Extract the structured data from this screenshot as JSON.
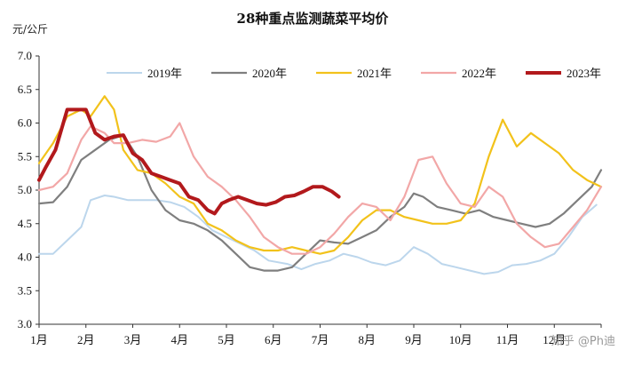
{
  "chart_data": {
    "type": "line",
    "title": "28种重点监测蔬菜平均价",
    "ylabel": "元/公斤",
    "xlabel": "",
    "ylim": [
      3.0,
      7.0
    ],
    "yticks": [
      "3.0",
      "3.5",
      "4.0",
      "4.5",
      "5.0",
      "5.5",
      "6.0",
      "6.5",
      "7.0"
    ],
    "x_months": [
      1,
      2,
      3,
      4,
      5,
      6,
      7,
      8,
      9,
      10,
      11,
      12
    ],
    "categories": [
      "1月",
      "2月",
      "3月",
      "4月",
      "5月",
      "6月",
      "7月",
      "8月",
      "9月",
      "10月",
      "11月",
      "12月"
    ],
    "grid": false,
    "legend_position": "top",
    "series": [
      {
        "name": "2019年",
        "color": "#bcd6ec",
        "width": 2,
        "x": [
          1.0,
          1.3,
          1.6,
          1.9,
          2.1,
          2.4,
          2.6,
          2.9,
          3.2,
          3.5,
          3.8,
          4.1,
          4.4,
          4.7,
          5.0,
          5.3,
          5.6,
          5.9,
          6.3,
          6.6,
          6.9,
          7.2,
          7.5,
          7.8,
          8.1,
          8.4,
          8.7,
          9.0,
          9.3,
          9.6,
          9.9,
          10.2,
          10.5,
          10.8,
          11.1,
          11.4,
          11.7,
          12.0,
          12.3,
          12.6,
          12.9
        ],
        "values": [
          4.05,
          4.05,
          4.25,
          4.45,
          4.85,
          4.92,
          4.9,
          4.85,
          4.85,
          4.85,
          4.82,
          4.75,
          4.6,
          4.4,
          4.3,
          4.2,
          4.1,
          3.95,
          3.9,
          3.82,
          3.9,
          3.95,
          4.05,
          4.0,
          3.92,
          3.88,
          3.95,
          4.15,
          4.05,
          3.9,
          3.85,
          3.8,
          3.75,
          3.78,
          3.88,
          3.9,
          3.95,
          4.05,
          4.3,
          4.6,
          4.78
        ]
      },
      {
        "name": "2020年",
        "color": "#7f7f7f",
        "width": 2.2,
        "x": [
          1.0,
          1.3,
          1.6,
          1.9,
          2.2,
          2.5,
          2.8,
          3.1,
          3.4,
          3.7,
          4.0,
          4.3,
          4.6,
          4.9,
          5.2,
          5.5,
          5.8,
          6.1,
          6.4,
          6.7,
          7.0,
          7.3,
          7.6,
          7.9,
          8.2,
          8.5,
          8.8,
          9.0,
          9.2,
          9.5,
          9.8,
          10.1,
          10.4,
          10.7,
          11.0,
          11.3,
          11.6,
          11.9,
          12.2,
          12.5,
          12.8,
          13.0
        ],
        "values": [
          4.8,
          4.82,
          5.05,
          5.45,
          5.6,
          5.75,
          5.82,
          5.5,
          5.0,
          4.7,
          4.55,
          4.5,
          4.4,
          4.25,
          4.05,
          3.85,
          3.8,
          3.8,
          3.85,
          4.05,
          4.25,
          4.22,
          4.2,
          4.3,
          4.4,
          4.6,
          4.75,
          4.95,
          4.9,
          4.75,
          4.7,
          4.65,
          4.7,
          4.6,
          4.55,
          4.5,
          4.45,
          4.5,
          4.65,
          4.85,
          5.05,
          5.3
        ]
      },
      {
        "name": "2021年",
        "color": "#f2c21b",
        "width": 2.2,
        "x": [
          1.0,
          1.3,
          1.6,
          1.9,
          2.1,
          2.4,
          2.6,
          2.8,
          3.1,
          3.4,
          3.7,
          4.0,
          4.3,
          4.6,
          4.9,
          5.2,
          5.5,
          5.8,
          6.1,
          6.4,
          6.7,
          7.0,
          7.3,
          7.6,
          7.9,
          8.2,
          8.5,
          8.8,
          9.1,
          9.4,
          9.7,
          10.0,
          10.3,
          10.6,
          10.9,
          11.2,
          11.5,
          11.8,
          12.1,
          12.4,
          12.7,
          13.0
        ],
        "values": [
          5.4,
          5.7,
          6.1,
          6.2,
          6.1,
          6.4,
          6.2,
          5.6,
          5.3,
          5.25,
          5.1,
          4.9,
          4.8,
          4.5,
          4.4,
          4.25,
          4.15,
          4.1,
          4.1,
          4.15,
          4.1,
          4.05,
          4.1,
          4.3,
          4.55,
          4.7,
          4.7,
          4.6,
          4.55,
          4.5,
          4.5,
          4.55,
          4.8,
          5.5,
          6.05,
          5.65,
          5.85,
          5.7,
          5.55,
          5.3,
          5.15,
          5.05
        ]
      },
      {
        "name": "2022年",
        "color": "#f2a7a7",
        "width": 2.2,
        "x": [
          1.0,
          1.3,
          1.6,
          1.9,
          2.1,
          2.4,
          2.6,
          2.9,
          3.2,
          3.5,
          3.8,
          4.0,
          4.3,
          4.6,
          4.9,
          5.2,
          5.5,
          5.8,
          6.1,
          6.4,
          6.7,
          7.0,
          7.3,
          7.6,
          7.9,
          8.2,
          8.5,
          8.8,
          9.1,
          9.4,
          9.7,
          10.0,
          10.3,
          10.6,
          10.9,
          11.2,
          11.5,
          11.8,
          12.1,
          12.4,
          12.7,
          13.0
        ],
        "values": [
          5.0,
          5.05,
          5.25,
          5.75,
          5.95,
          5.85,
          5.7,
          5.7,
          5.75,
          5.72,
          5.8,
          6.0,
          5.5,
          5.2,
          5.05,
          4.85,
          4.6,
          4.3,
          4.15,
          4.05,
          4.05,
          4.15,
          4.35,
          4.6,
          4.8,
          4.75,
          4.55,
          4.9,
          5.45,
          5.5,
          5.1,
          4.8,
          4.75,
          5.05,
          4.9,
          4.5,
          4.3,
          4.15,
          4.2,
          4.45,
          4.7,
          5.05
        ]
      },
      {
        "name": "2023年",
        "color": "#b2191c",
        "width": 4,
        "x": [
          1.0,
          1.15,
          1.35,
          1.6,
          1.8,
          2.0,
          2.2,
          2.4,
          2.6,
          2.8,
          3.0,
          3.2,
          3.4,
          3.6,
          3.8,
          4.0,
          4.2,
          4.4,
          4.6,
          4.75,
          4.9,
          5.05,
          5.25,
          5.45,
          5.65,
          5.85,
          6.05,
          6.25,
          6.45,
          6.65,
          6.85,
          7.05,
          7.25,
          7.4
        ],
        "values": [
          5.15,
          5.35,
          5.6,
          6.2,
          6.2,
          6.2,
          5.85,
          5.75,
          5.8,
          5.82,
          5.55,
          5.45,
          5.25,
          5.2,
          5.15,
          5.1,
          4.9,
          4.85,
          4.7,
          4.65,
          4.8,
          4.85,
          4.9,
          4.85,
          4.8,
          4.78,
          4.82,
          4.9,
          4.92,
          4.98,
          5.05,
          5.05,
          4.98,
          4.9
        ]
      }
    ]
  },
  "watermark": "知乎 @Ph迪"
}
